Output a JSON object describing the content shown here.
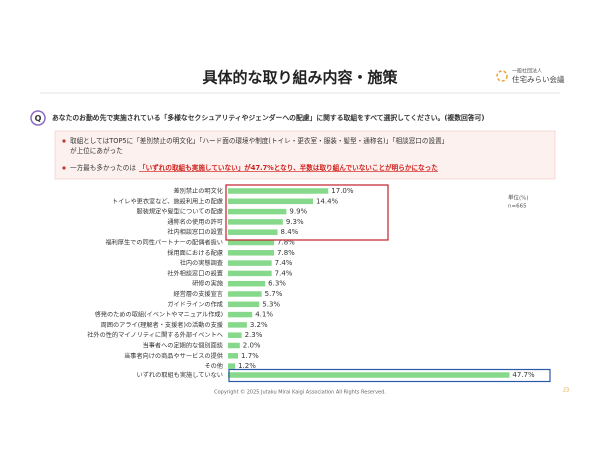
{
  "header": {
    "title": "具体的な取り組み内容・施策",
    "org_type": "一般社団法人",
    "org_name": "住宅みらい会議"
  },
  "question": {
    "icon": "Q",
    "text": "あなたのお勤め先で実施されている「多様なセクシュアリティやジェンダーへの配慮」に関する取組をすべて選択してください。(複数回答可)"
  },
  "bullets": [
    {
      "lines": [
        "取組としてはTOP5に「差別禁止の明文化」「ハード面の環境や制度(トイレ・更衣室・服装・髪型・通称名)」「相談窓口の設置」",
        "が上位にあがった"
      ]
    },
    {
      "lines": [
        "一方最も多かったのは",
        "「いずれの取組も実施していない」が47.7%となり、半数は取り組んでいないことが明らかになった"
      ]
    }
  ],
  "chart_data": {
    "type": "bar",
    "orientation": "horizontal",
    "color": "#86d98a",
    "unit": "単位(%)",
    "sample": "n=665",
    "categories": [
      "差別禁止の明文化",
      "トイレや更衣室など、施設利用上の配慮",
      "服装規定や髪型についての配慮",
      "通称名の使用の許可",
      "社内相談窓口の設置",
      "福利厚生での同性パートナーの配偶者扱い",
      "採用面における配慮",
      "社内の実態調査",
      "社外相談窓口の設置",
      "研修の実施",
      "経営層の支援宣言",
      "ガイドラインの作成",
      "啓発のための取組(イベントやマニュアル作成)",
      "周囲のアライ(理解者・支援者)の活動の支援",
      "社外の性的マイノリティに関する外部イベントへ",
      "当事者への定期的な個別面談",
      "当事者向けの商品やサービスの提供",
      "その他",
      "いずれの取組も実施していない"
    ],
    "values": [
      17.0,
      14.4,
      9.9,
      9.3,
      8.4,
      7.8,
      7.8,
      7.4,
      7.4,
      6.3,
      5.7,
      5.3,
      4.1,
      3.2,
      2.3,
      2.0,
      1.7,
      1.2,
      47.7
    ],
    "value_labels": [
      "17.0%",
      "14.4%",
      "9.9%",
      "9.3%",
      "8.4%",
      "7.8%",
      "7.8%",
      "7.4%",
      "7.4%",
      "6.3%",
      "5.7%",
      "5.3%",
      "4.1%",
      "3.2%",
      "2.3%",
      "2.0%",
      "1.7%",
      "1.2%",
      "47.7%"
    ],
    "xlim": [
      0,
      50
    ]
  },
  "footer": {
    "copyright": "Copyright © 2025 Jutaku Mirai Kaigi Association All Rights Reserved.",
    "page": "23"
  }
}
